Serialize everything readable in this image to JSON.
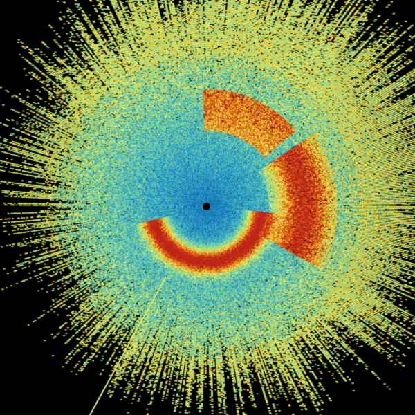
{
  "radar": {
    "background_color": "#000000",
    "palette": [
      "#0a4f9e",
      "#1677c0",
      "#2a9fd0",
      "#46bcc4",
      "#6fd0a8",
      "#a8e28a",
      "#e4ee6a",
      "#f5d23a",
      "#f0a020",
      "#e0601a",
      "#c0281a"
    ],
    "center_marker_color": "#000000"
  }
}
